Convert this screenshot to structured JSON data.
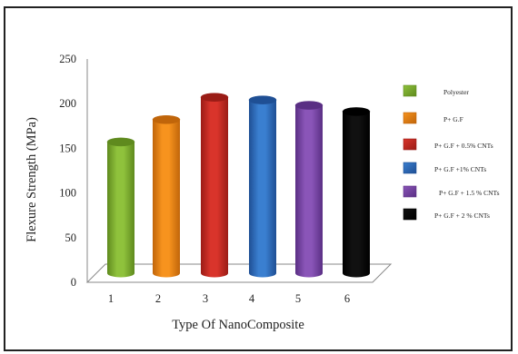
{
  "chart_data": {
    "type": "bar",
    "style": "3d-cylinder",
    "categories": [
      "1",
      "2",
      "3",
      "4",
      "5",
      "6"
    ],
    "values": [
      150,
      175,
      200,
      197,
      191,
      184
    ],
    "xlabel": "Type Of NanoComposite",
    "ylabel": "Flexure Strength (MPa)",
    "ylim": [
      0,
      250
    ],
    "yticks": [
      "0",
      "50",
      "100",
      "150",
      "200",
      "250"
    ],
    "grid": false,
    "legend_position": "right",
    "series": [
      {
        "name": "Polyester",
        "value": 150,
        "color": "#8fc23c",
        "dark": "#5f8a1e"
      },
      {
        "name": "P+ G.F",
        "value": 175,
        "color": "#f7931e",
        "dark": "#c0650a"
      },
      {
        "name": "P+ G.F + 0.5% CNTs",
        "value": 200,
        "color": "#d9342b",
        "dark": "#9a1c16"
      },
      {
        "name": "P+ G.F +1% CNTs",
        "value": 197,
        "color": "#3a7fd0",
        "dark": "#1f4f94"
      },
      {
        "name": "P+ G.F + 1.5 % CNTs",
        "value": 191,
        "color": "#8a55b8",
        "dark": "#5a2f84"
      },
      {
        "name": "P+ G.F + 2 % CNTs",
        "value": 184,
        "color": "#111111",
        "dark": "#000000"
      }
    ]
  }
}
